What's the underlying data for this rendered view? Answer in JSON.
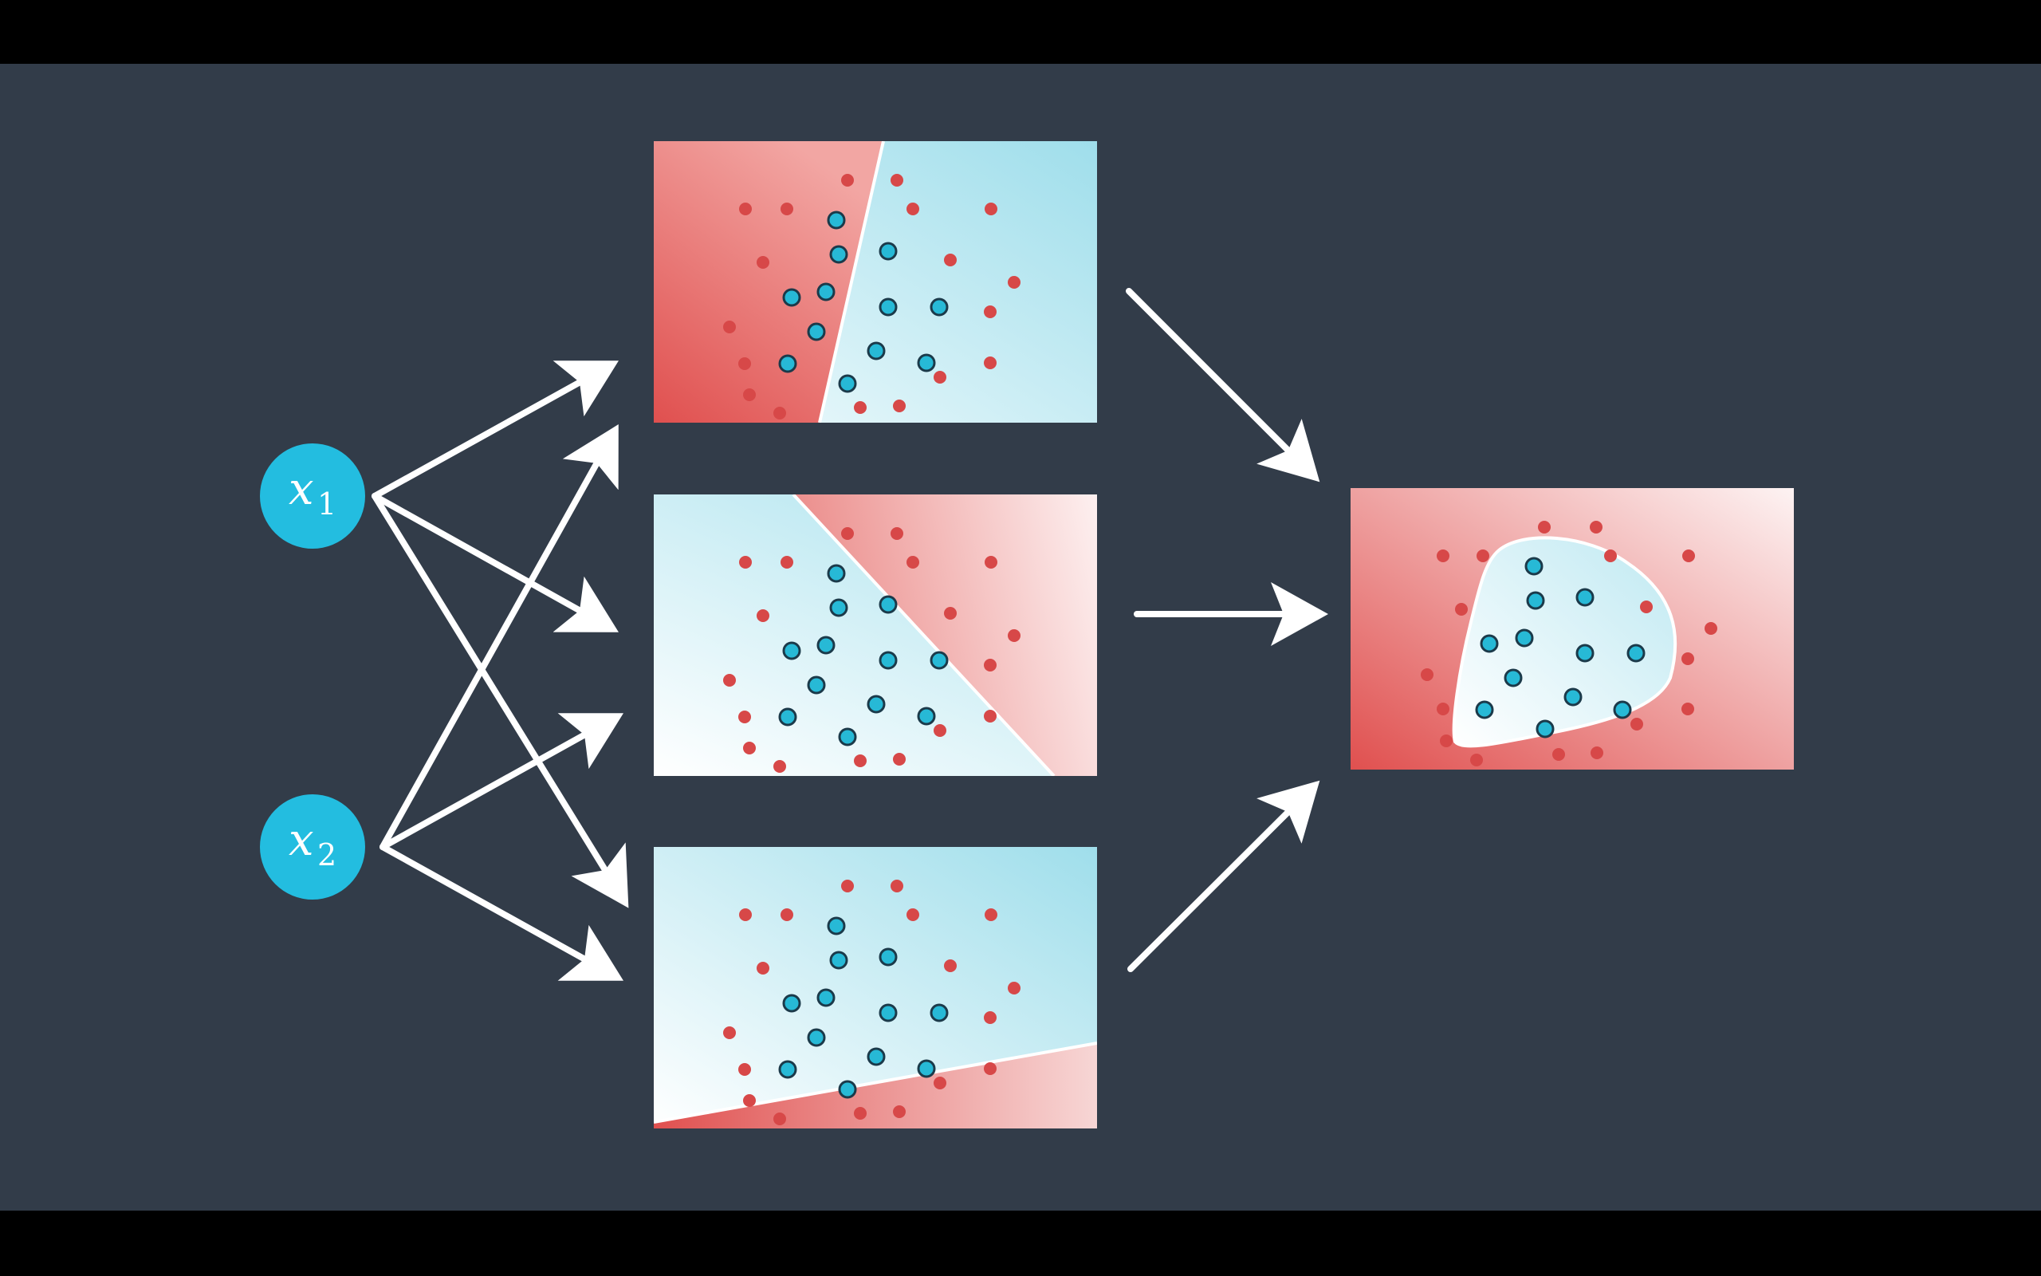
{
  "inputs": [
    {
      "name": "x",
      "subscript": "1"
    },
    {
      "name": "x",
      "subscript": "2"
    }
  ],
  "colors": {
    "background": "#323c49",
    "letterbox": "#000000",
    "node_fill": "#23bde0",
    "arrow": "#ffffff",
    "red_region": "#e0504f",
    "blue_region": "#9fdeeb",
    "red_point": "#d74848",
    "blue_point": "#27b9d6",
    "blue_point_stroke": "#1b3a4a"
  },
  "icons": {
    "arrow": "arrow-right-icon"
  }
}
